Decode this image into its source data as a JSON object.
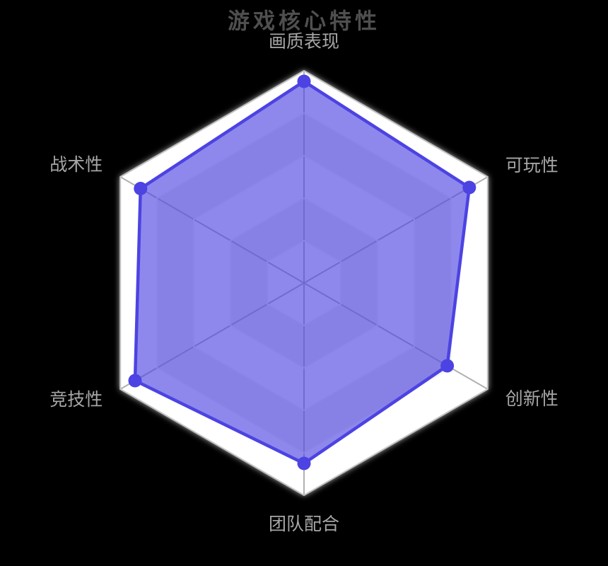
{
  "title": {
    "text": "游戏核心特性"
  },
  "colors": {
    "background": "#000000",
    "title_text": "#4f4f4f",
    "axis_label_text": "#a6a6a6",
    "series_color": "#4c43e2",
    "series_fill": "rgba(76,67,226,0.63)",
    "grid_ring_line": "#f4f4f4",
    "spoke_line": "#b0b0b0",
    "outer_border": "#c2c2c2",
    "band_light": "#ffffff",
    "band_dark": "#ececec",
    "halo": "#dcdcdc"
  },
  "chart_data": {
    "type": "radar",
    "title": "游戏核心特性",
    "shape": "hexagon",
    "levels": 5,
    "grid": true,
    "legend_position": "none",
    "value_range": [
      0,
      100
    ],
    "indicators": [
      {
        "name": "画质表现",
        "max": 100
      },
      {
        "name": "可玩性",
        "max": 100
      },
      {
        "name": "创新性",
        "max": 100
      },
      {
        "name": "团队配合",
        "max": 100
      },
      {
        "name": "竞技性",
        "max": 100
      },
      {
        "name": "战术性",
        "max": 100
      }
    ],
    "series": [
      {
        "name": "游戏核心特性",
        "values": [
          95,
          90,
          78,
          85,
          92,
          89
        ]
      }
    ]
  }
}
